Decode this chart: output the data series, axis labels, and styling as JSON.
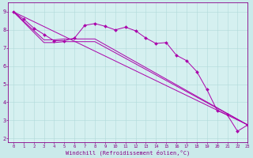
{
  "xlabel": "Windchill (Refroidissement éolien,°C)",
  "ylabel": "",
  "bg_color": "#caeaea",
  "plot_bg_color": "#d5f0f0",
  "line_color": "#aa00aa",
  "grid_color": "#b0dada",
  "xlim": [
    -0.5,
    23
  ],
  "ylim": [
    1.8,
    9.5
  ],
  "yticks": [
    2,
    3,
    4,
    5,
    6,
    7,
    8,
    9
  ],
  "xticks": [
    0,
    1,
    2,
    3,
    4,
    5,
    6,
    7,
    8,
    9,
    10,
    11,
    12,
    13,
    14,
    15,
    16,
    17,
    18,
    19,
    20,
    21,
    22,
    23
  ],
  "xtick_labels": [
    "0",
    "1",
    "2",
    "3",
    "4",
    "5",
    "6",
    "7",
    "8",
    "9",
    "10",
    "11",
    "12",
    "13",
    "14",
    "15",
    "16",
    "17",
    "18",
    "19",
    "20",
    "21",
    "22",
    "23"
  ],
  "line1_x": [
    0,
    1,
    2,
    3,
    4,
    5,
    6,
    7,
    8,
    9,
    10,
    11,
    12,
    13,
    14,
    15,
    16,
    17,
    18,
    19,
    20,
    21,
    22,
    23
  ],
  "line1_y": [
    9.0,
    8.6,
    8.1,
    7.75,
    7.4,
    7.4,
    7.55,
    8.25,
    8.35,
    8.2,
    8.0,
    8.15,
    7.95,
    7.55,
    7.25,
    7.3,
    6.6,
    6.3,
    5.7,
    4.7,
    3.55,
    3.3,
    2.4,
    2.75
  ],
  "line2_x": [
    0,
    3,
    4,
    5,
    6,
    8,
    23
  ],
  "line2_y": [
    9.0,
    7.45,
    7.45,
    7.5,
    7.5,
    7.5,
    2.75
  ],
  "line3_x": [
    0,
    3,
    4,
    5,
    6,
    8,
    23
  ],
  "line3_y": [
    9.0,
    7.3,
    7.3,
    7.35,
    7.35,
    7.35,
    2.75
  ],
  "line4_x": [
    0,
    23
  ],
  "line4_y": [
    9.0,
    2.75
  ],
  "marker": "D",
  "markersize": 2.0,
  "linewidth": 0.7
}
